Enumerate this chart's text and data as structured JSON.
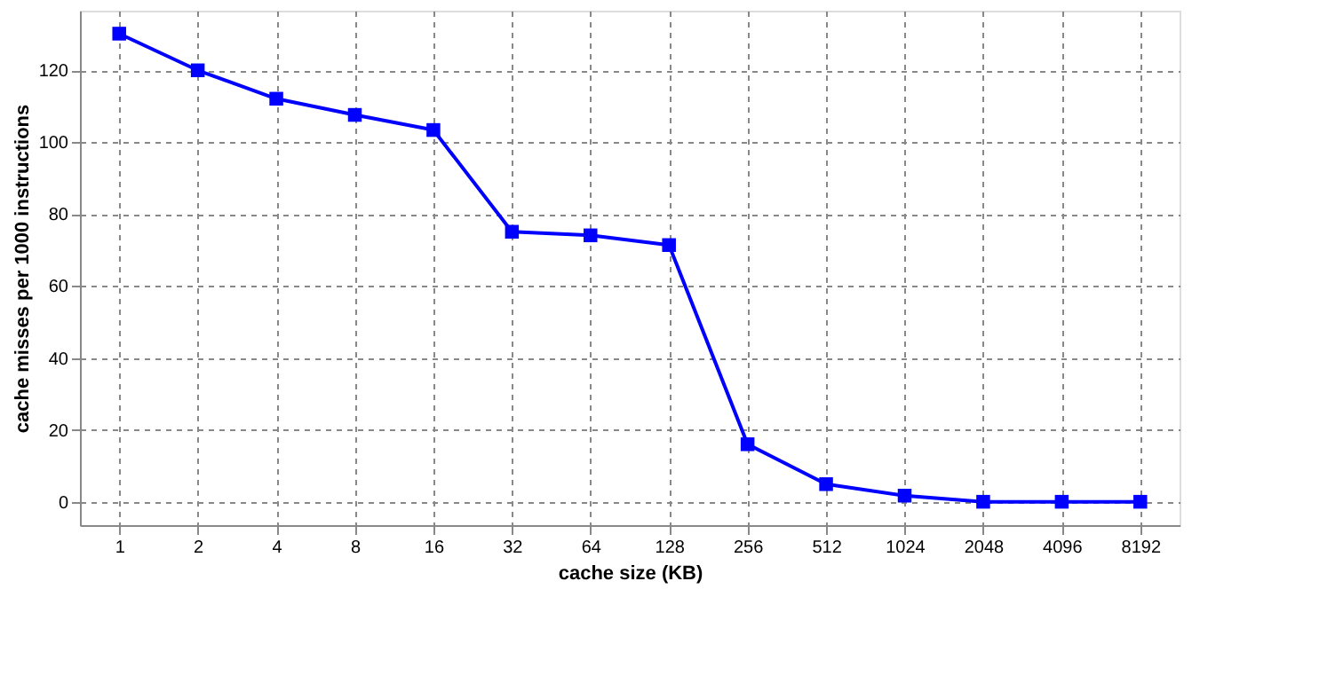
{
  "chart_data": {
    "type": "line",
    "xlabel": "cache size (KB)",
    "ylabel": "cache misses per 1000 instructions",
    "categories": [
      "1",
      "2",
      "4",
      "8",
      "16",
      "32",
      "64",
      "128",
      "256",
      "512",
      "1024",
      "2048",
      "4096",
      "8192"
    ],
    "series": [
      {
        "color": "#0000ff",
        "values": [
          130.2,
          120,
          112.1,
          107.6,
          103.4,
          75.1,
          74.1,
          71.4,
          16,
          4.9,
          1.7,
          0,
          0,
          0
        ]
      }
    ],
    "ylim": [
      -6.5,
      136.6
    ],
    "yticks": [
      0,
      20,
      40,
      60,
      80,
      100,
      120
    ],
    "grid": true,
    "marker": "square",
    "line_style": "solid"
  }
}
